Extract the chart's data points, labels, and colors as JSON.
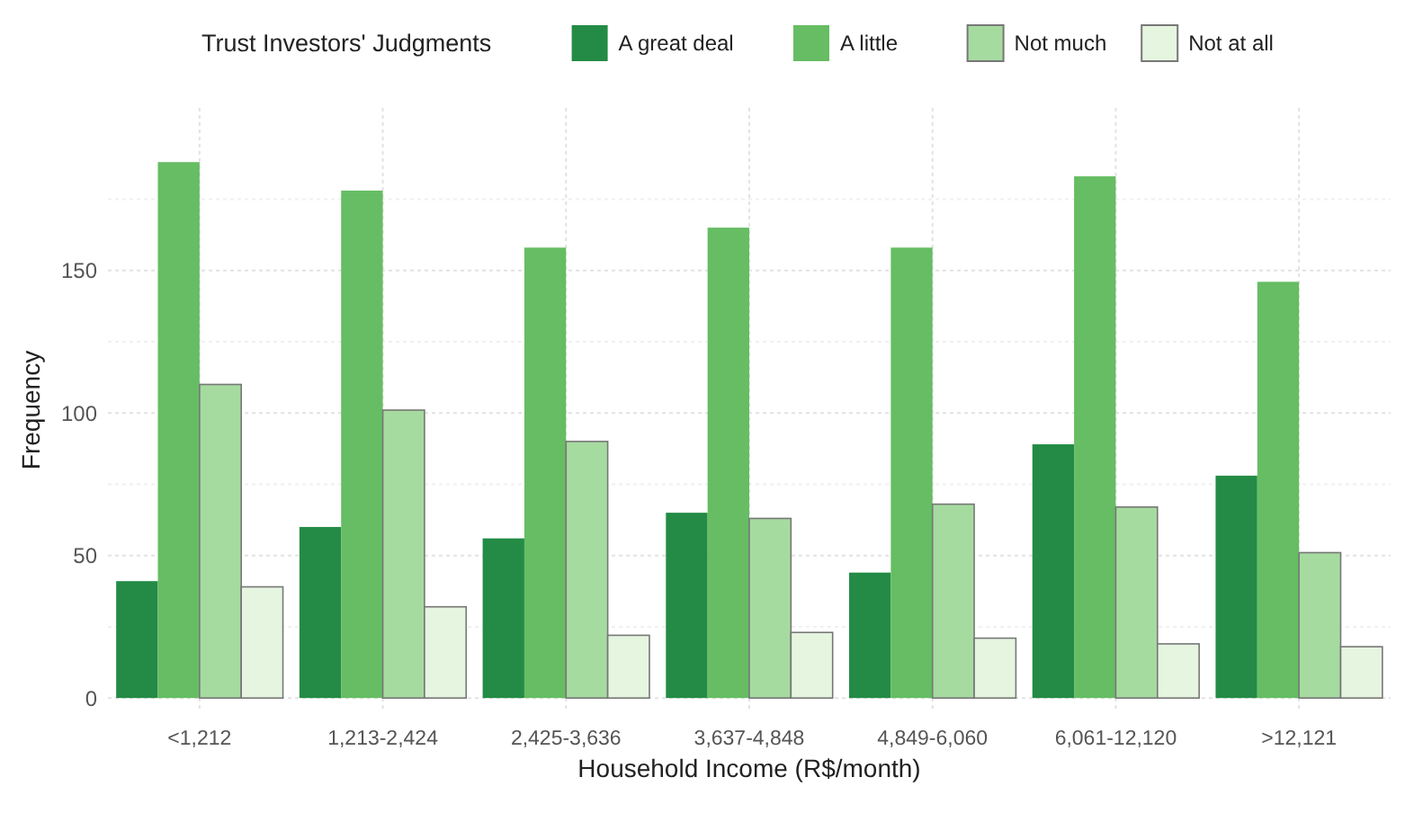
{
  "chart_data": {
    "type": "bar",
    "xlabel": "Household Income (R$/month)",
    "ylabel": "Frequency",
    "legend_title": "Trust Investors' Judgments",
    "categories": [
      "<1,212",
      "1,213-2,424",
      "2,425-3,636",
      "3,637-4,848",
      "4,849-6,060",
      "6,061-12,120",
      ">12,121"
    ],
    "series": [
      {
        "name": "A great deal",
        "color": "#238b45",
        "values": [
          41,
          60,
          56,
          65,
          44,
          89,
          78
        ]
      },
      {
        "name": "A little",
        "color": "#66bd63",
        "values": [
          188,
          178,
          158,
          165,
          158,
          183,
          146
        ]
      },
      {
        "name": "Not much",
        "color": "#a6dba0",
        "values": [
          110,
          101,
          90,
          63,
          68,
          67,
          51
        ]
      },
      {
        "name": "Not at all",
        "color": "#e5f5e0",
        "values": [
          39,
          32,
          22,
          23,
          21,
          19,
          18
        ]
      }
    ],
    "ylim": [
      -5,
      207
    ],
    "yticks": [
      0,
      {
        "value": 25,
        "label": null
      },
      50,
      {
        "value": 75,
        "label": null
      },
      100,
      {
        "value": 125,
        "label": null
      },
      150,
      {
        "value": 175,
        "label": null
      }
    ],
    "grid": true,
    "legend": "top"
  }
}
